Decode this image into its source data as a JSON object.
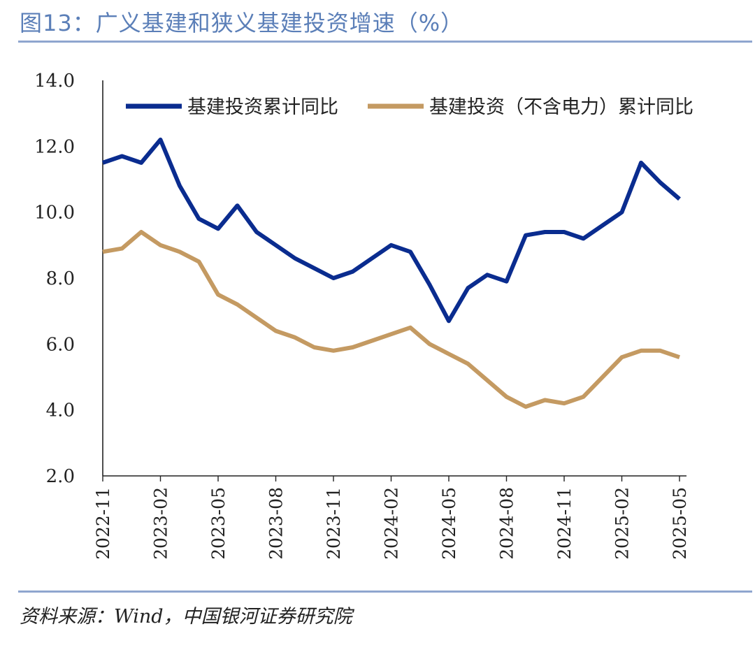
{
  "title": "图13：广义基建和狭义基建投资增速（%）",
  "source": "资料来源：Wind，中国银河证券研究院",
  "colors": {
    "series1": "#0a2c8f",
    "series2": "#c49a62",
    "axis": "#222222",
    "title": "#5b7fb8",
    "rule": "#8fa6cf"
  },
  "chart_data": {
    "type": "line",
    "title": "",
    "xlabel": "",
    "ylabel": "",
    "ylim": [
      2.0,
      14.0
    ],
    "yticks": [
      "2.0",
      "4.0",
      "6.0",
      "8.0",
      "10.0",
      "12.0",
      "14.0"
    ],
    "grid": false,
    "legend": "top",
    "x": [
      "2022-11",
      "2022-12",
      "2023-01",
      "2023-02",
      "2023-03",
      "2023-04",
      "2023-05",
      "2023-06",
      "2023-07",
      "2023-08",
      "2023-09",
      "2023-10",
      "2023-11",
      "2023-12",
      "2024-01",
      "2024-02",
      "2024-03",
      "2024-04",
      "2024-05",
      "2024-06",
      "2024-07",
      "2024-08",
      "2024-09",
      "2024-10",
      "2024-11",
      "2024-12",
      "2025-01",
      "2025-02",
      "2025-03",
      "2025-04",
      "2025-05"
    ],
    "xticks": [
      "2022-11",
      "2023-02",
      "2023-05",
      "2023-08",
      "2023-11",
      "2024-02",
      "2024-05",
      "2024-08",
      "2024-11",
      "2025-02",
      "2025-05"
    ],
    "series": [
      {
        "name": "基建投资累计同比",
        "values": [
          11.5,
          11.7,
          11.5,
          12.2,
          10.8,
          9.8,
          9.5,
          10.2,
          9.4,
          9.0,
          8.6,
          8.3,
          8.0,
          8.2,
          8.6,
          9.0,
          8.8,
          7.8,
          6.7,
          7.7,
          8.1,
          7.9,
          9.3,
          9.4,
          9.4,
          9.2,
          9.6,
          10.0,
          11.5,
          10.9,
          10.4
        ]
      },
      {
        "name": "基建投资（不含电力）累计同比",
        "values": [
          8.8,
          8.9,
          9.4,
          9.0,
          8.8,
          8.5,
          7.5,
          7.2,
          6.8,
          6.4,
          6.2,
          5.9,
          5.8,
          5.9,
          6.1,
          6.3,
          6.5,
          6.0,
          5.7,
          5.4,
          4.9,
          4.4,
          4.1,
          4.3,
          4.2,
          4.4,
          5.0,
          5.6,
          5.8,
          5.8,
          5.6
        ]
      }
    ]
  }
}
